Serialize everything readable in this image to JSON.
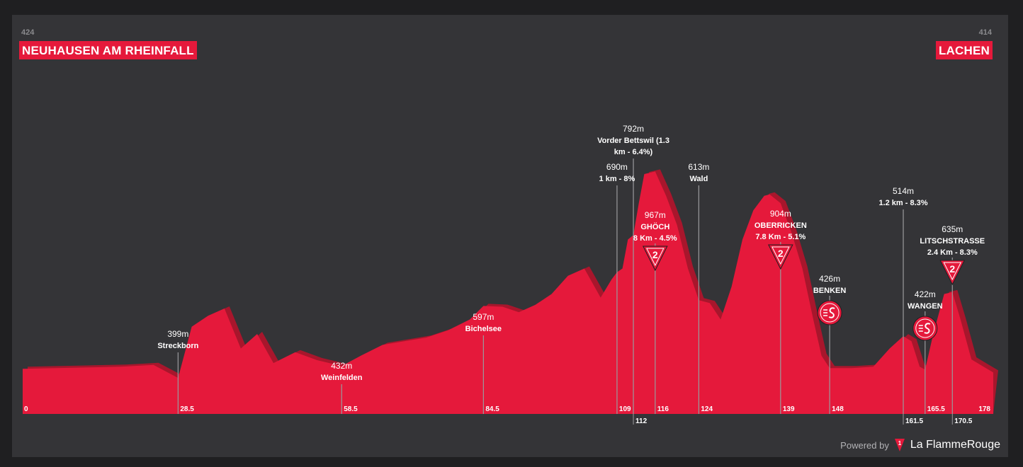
{
  "start": {
    "name": "NEUHAUSEN AM RHEINFALL",
    "altitude": "424"
  },
  "finish": {
    "name": "LACHEN",
    "altitude": "414"
  },
  "footer": {
    "powered": "Powered by",
    "brand": "La FlammeRouge"
  },
  "colors": {
    "background": "#1f1f21",
    "panel": "#343437",
    "profile": "#e5193b",
    "profile_shadow": "#a8162c",
    "label": "#ffffff",
    "leader": "#9a9a9d"
  },
  "chart_data": {
    "type": "area",
    "title": "",
    "xlabel": "",
    "ylabel": "",
    "xlim": [
      0,
      178
    ],
    "ylim": [
      300,
      1400
    ],
    "profile": {
      "x": [
        0,
        6,
        12,
        18,
        24,
        28.5,
        31,
        34,
        37,
        40,
        43,
        46,
        50,
        54,
        58.5,
        62,
        66,
        70,
        74,
        78,
        82,
        84.5,
        88,
        91,
        94,
        97,
        100,
        103,
        106,
        108,
        109,
        110,
        111,
        112,
        113,
        114,
        116,
        118,
        120,
        122,
        124,
        126,
        128,
        130,
        132,
        134,
        136,
        137,
        139,
        141,
        143,
        145,
        146.5,
        148,
        152,
        156,
        159,
        161.5,
        163,
        164.5,
        165.5,
        167,
        169,
        170.5,
        172,
        174,
        176,
        178
      ],
      "y": [
        424,
        426,
        428,
        430,
        435,
        399,
        540,
        570,
        590,
        480,
        520,
        440,
        470,
        448,
        432,
        460,
        490,
        500,
        510,
        530,
        560,
        597,
        595,
        580,
        600,
        630,
        680,
        700,
        620,
        670,
        690,
        700,
        780,
        792,
        880,
        960,
        967,
        900,
        820,
        700,
        613,
        605,
        560,
        650,
        780,
        860,
        900,
        904,
        880,
        800,
        700,
        560,
        460,
        426,
        426,
        430,
        480,
        514,
        500,
        430,
        422,
        520,
        630,
        635,
        560,
        450,
        432,
        414
      ]
    },
    "x_ticks": [
      "0",
      "28.5",
      "58.5",
      "84.5",
      "109",
      "112",
      "116",
      "124",
      "139",
      "148",
      "161.5",
      "165.5",
      "170.5",
      "178"
    ],
    "points": [
      {
        "km": 28.5,
        "alt": "399m",
        "name": "Streckborn",
        "detail": "",
        "category": ""
      },
      {
        "km": 58.5,
        "alt": "432m",
        "name": "Weinfelden",
        "detail": "",
        "category": ""
      },
      {
        "km": 84.5,
        "alt": "597m",
        "name": "Bichelsee",
        "detail": "",
        "category": ""
      },
      {
        "km": 109,
        "alt": "690m",
        "name": "",
        "detail": "1 km - 8%",
        "category": ""
      },
      {
        "km": 112,
        "alt": "792m",
        "name": "Vorder Bettswil (1.3",
        "detail": "km - 6.4%)",
        "category": ""
      },
      {
        "km": 116,
        "alt": "967m",
        "name": "GHÖCH",
        "detail": "8 Km - 4.5%",
        "category": "2"
      },
      {
        "km": 124,
        "alt": "613m",
        "name": "Wald",
        "detail": "",
        "category": ""
      },
      {
        "km": 139,
        "alt": "904m",
        "name": "OBERRICKEN",
        "detail": "7.8 Km - 5.1%",
        "category": "2"
      },
      {
        "km": 148,
        "alt": "426m",
        "name": "BENKEN",
        "detail": "",
        "category": "sprint"
      },
      {
        "km": 161.5,
        "alt": "514m",
        "name": "",
        "detail": "1.2 km - 8.3%",
        "category": ""
      },
      {
        "km": 165.5,
        "alt": "422m",
        "name": "WANGEN",
        "detail": "",
        "category": "sprint"
      },
      {
        "km": 170.5,
        "alt": "635m",
        "name": "LITSCHSTRASSE",
        "detail": "2.4 Km - 8.3%",
        "category": "2"
      }
    ]
  }
}
